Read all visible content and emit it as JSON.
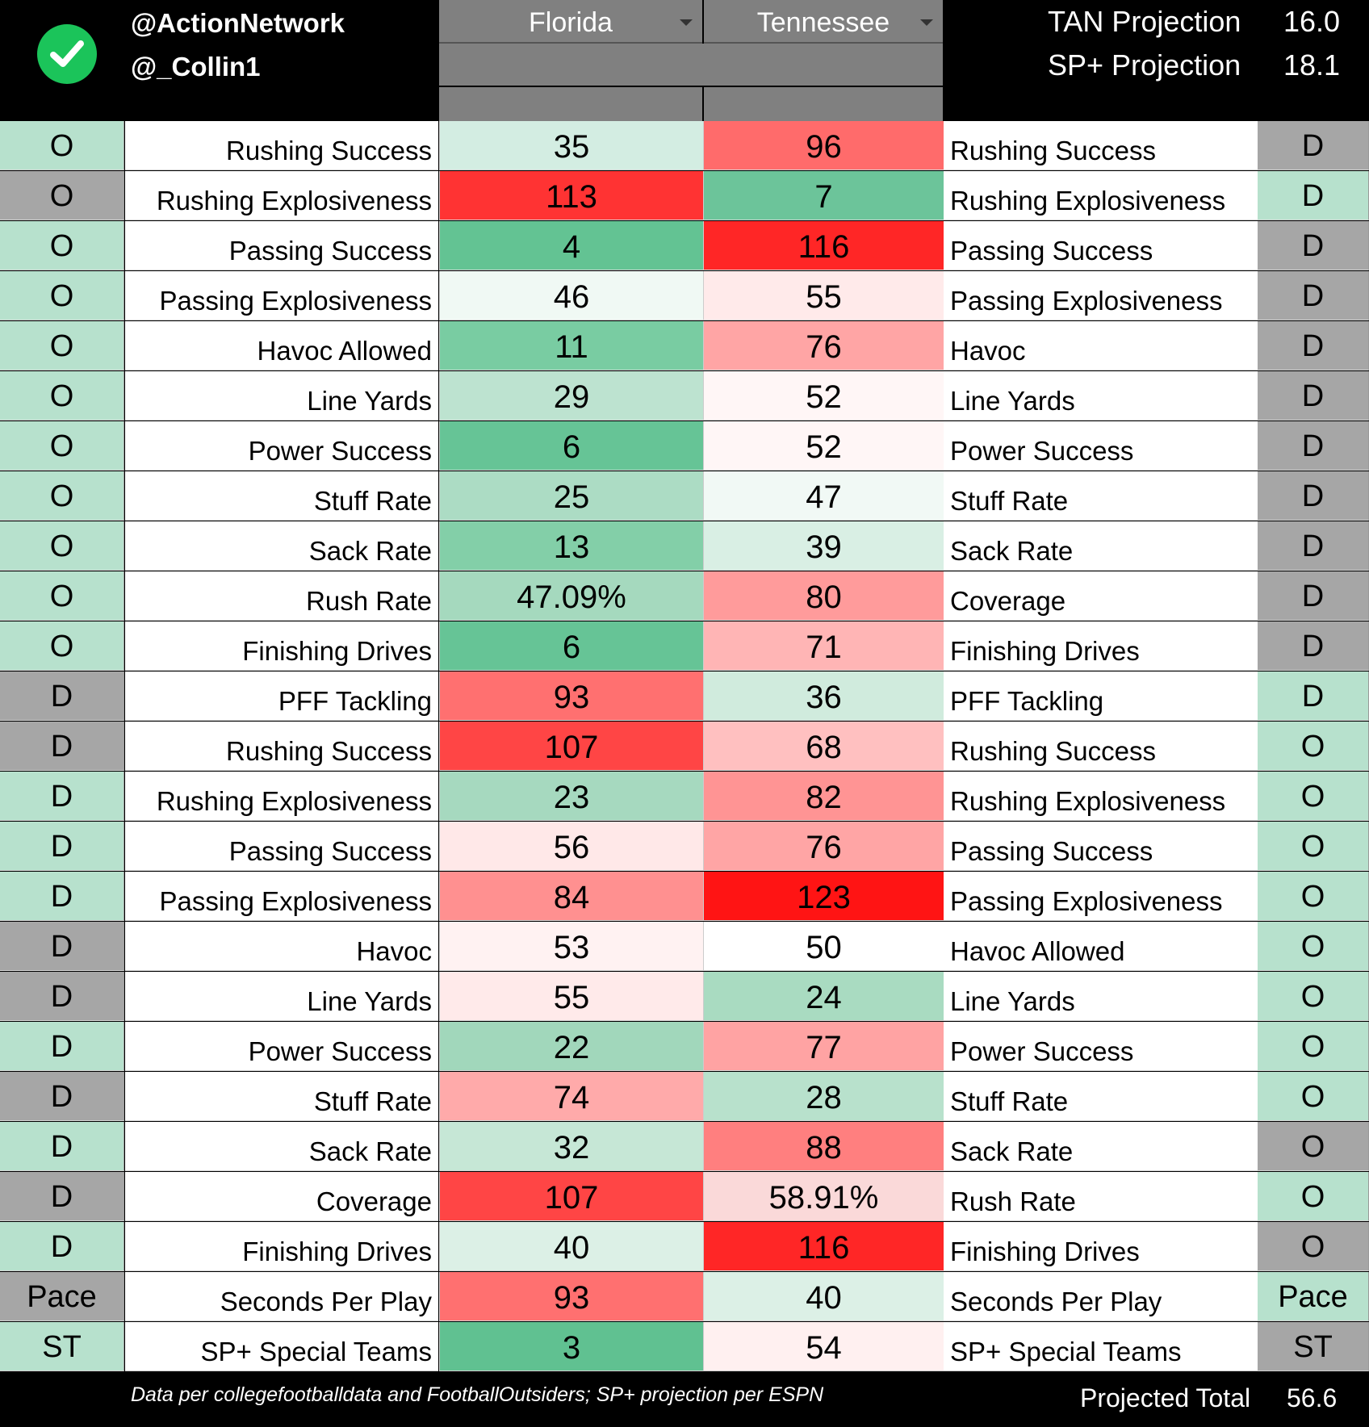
{
  "header": {
    "handles": [
      "@ActionNetwork",
      "@_Collin1"
    ],
    "team_left": "Florida",
    "team_right": "Tennessee",
    "projections": [
      {
        "label": "TAN Projection",
        "value": "16.0"
      },
      {
        "label": "SP+ Projection",
        "value": "18.1"
      }
    ]
  },
  "colors": {
    "side_green": "#b7e1cd",
    "side_gray": "#a6a6a6",
    "check_green": "#1bc45a"
  },
  "rows": [
    {
      "ls": "O",
      "lc": "green",
      "ll": "Rushing Success",
      "fv": "35",
      "fc": "#d3ede2",
      "tv": "96",
      "tc": "#ff6b6b",
      "rl": "Rushing Success",
      "rs": "D",
      "rc": "gray"
    },
    {
      "ls": "O",
      "lc": "gray",
      "ll": "Rushing Explosiveness",
      "fv": "113",
      "fc": "#ff3333",
      "tv": "7",
      "tc": "#6cc49a",
      "rl": "Rushing Explosiveness",
      "rs": "D",
      "rc": "green"
    },
    {
      "ls": "O",
      "lc": "green",
      "ll": "Passing Success",
      "fv": "4",
      "fc": "#63c393",
      "tv": "116",
      "tc": "#ff2626",
      "rl": "Passing Success",
      "rs": "D",
      "rc": "gray"
    },
    {
      "ls": "O",
      "lc": "green",
      "ll": "Passing Explosiveness",
      "fv": "46",
      "fc": "#f0f9f4",
      "tv": "55",
      "tc": "#ffeaea",
      "rl": "Passing Explosiveness",
      "rs": "D",
      "rc": "gray"
    },
    {
      "ls": "O",
      "lc": "green",
      "ll": "Havoc Allowed",
      "fv": "11",
      "fc": "#79cca2",
      "tv": "76",
      "tc": "#ffa5a5",
      "rl": "Havoc",
      "rs": "D",
      "rc": "gray"
    },
    {
      "ls": "O",
      "lc": "green",
      "ll": "Line Yards",
      "fv": "29",
      "fc": "#bde3d0",
      "tv": "52",
      "tc": "#fff6f6",
      "rl": "Line Yards",
      "rs": "D",
      "rc": "gray"
    },
    {
      "ls": "O",
      "lc": "green",
      "ll": "Power Success",
      "fv": "6",
      "fc": "#66c496",
      "tv": "52",
      "tc": "#fff6f6",
      "rl": "Power Success",
      "rs": "D",
      "rc": "gray"
    },
    {
      "ls": "O",
      "lc": "green",
      "ll": "Stuff Rate",
      "fv": "25",
      "fc": "#acdcc4",
      "tv": "47",
      "tc": "#f1f9f5",
      "rl": "Stuff Rate",
      "rs": "D",
      "rc": "gray"
    },
    {
      "ls": "O",
      "lc": "green",
      "ll": "Sack Rate",
      "fv": "13",
      "fc": "#83cfa8",
      "tv": "39",
      "tc": "#d9efe4",
      "rl": "Sack Rate",
      "rs": "D",
      "rc": "gray"
    },
    {
      "ls": "O",
      "lc": "green",
      "ll": "Rush Rate",
      "fv": "47.09%",
      "fc": "#a5d9be",
      "tv": "80",
      "tc": "#ff9b9b",
      "rl": "Coverage",
      "rs": "D",
      "rc": "gray"
    },
    {
      "ls": "O",
      "lc": "green",
      "ll": "Finishing Drives",
      "fv": "6",
      "fc": "#66c496",
      "tv": "71",
      "tc": "#ffb5b5",
      "rl": "Finishing Drives",
      "rs": "D",
      "rc": "gray"
    },
    {
      "ls": "D",
      "lc": "gray",
      "ll": "PFF Tackling",
      "fv": "93",
      "fc": "#ff7070",
      "tv": "36",
      "tc": "#d0ebdd",
      "rl": "PFF Tackling",
      "rs": "D",
      "rc": "green"
    },
    {
      "ls": "D",
      "lc": "gray",
      "ll": "Rushing Success",
      "fv": "107",
      "fc": "#ff4545",
      "tv": "68",
      "tc": "#ffc0c0",
      "rl": "Rushing Success",
      "rs": "O",
      "rc": "green"
    },
    {
      "ls": "D",
      "lc": "green",
      "ll": "Rushing Explosiveness",
      "fv": "23",
      "fc": "#a6d9bf",
      "tv": "82",
      "tc": "#ff9494",
      "rl": "Rushing Explosiveness",
      "rs": "O",
      "rc": "green"
    },
    {
      "ls": "D",
      "lc": "green",
      "ll": "Passing Success",
      "fv": "56",
      "fc": "#ffe8e8",
      "tv": "76",
      "tc": "#ffa5a5",
      "rl": "Passing Success",
      "rs": "O",
      "rc": "green"
    },
    {
      "ls": "D",
      "lc": "green",
      "ll": "Passing Explosiveness",
      "fv": "84",
      "fc": "#ff9090",
      "tv": "123",
      "tc": "#ff1414",
      "rl": "Passing Explosiveness",
      "rs": "O",
      "rc": "green"
    },
    {
      "ls": "D",
      "lc": "gray",
      "ll": "Havoc",
      "fv": "53",
      "fc": "#fff2f2",
      "tv": "50",
      "tc": "#ffffff",
      "rl": "Havoc Allowed",
      "rs": "O",
      "rc": "green"
    },
    {
      "ls": "D",
      "lc": "gray",
      "ll": "Line Yards",
      "fv": "55",
      "fc": "#ffeaea",
      "tv": "24",
      "tc": "#a9dbc1",
      "rl": "Line Yards",
      "rs": "O",
      "rc": "green"
    },
    {
      "ls": "D",
      "lc": "green",
      "ll": "Power Success",
      "fv": "22",
      "fc": "#a1d7bb",
      "tv": "77",
      "tc": "#ffa3a3",
      "rl": "Power Success",
      "rs": "O",
      "rc": "green"
    },
    {
      "ls": "D",
      "lc": "gray",
      "ll": "Stuff Rate",
      "fv": "74",
      "fc": "#ffaaaa",
      "tv": "28",
      "tc": "#b8e1cc",
      "rl": "Stuff Rate",
      "rs": "O",
      "rc": "green"
    },
    {
      "ls": "D",
      "lc": "green",
      "ll": "Sack Rate",
      "fv": "32",
      "fc": "#c6e7d6",
      "tv": "88",
      "tc": "#ff7f7f",
      "rl": "Sack Rate",
      "rs": "O",
      "rc": "gray"
    },
    {
      "ls": "D",
      "lc": "gray",
      "ll": "Coverage",
      "fv": "107",
      "fc": "#ff4545",
      "tv": "58.91%",
      "tc": "#fad9d9",
      "rl": "Rush Rate",
      "rs": "O",
      "rc": "green"
    },
    {
      "ls": "D",
      "lc": "green",
      "ll": "Finishing Drives",
      "fv": "40",
      "fc": "#dcf0e6",
      "tv": "116",
      "tc": "#ff2626",
      "rl": "Finishing Drives",
      "rs": "O",
      "rc": "gray"
    },
    {
      "ls": "Pace",
      "lc": "gray",
      "ll": "Seconds Per Play",
      "fv": "93",
      "fc": "#ff7070",
      "tv": "40",
      "tc": "#dcf0e6",
      "rl": "Seconds Per Play",
      "rs": "Pace",
      "rc": "green"
    },
    {
      "ls": "ST",
      "lc": "green",
      "ll": "SP+ Special Teams",
      "fv": "3",
      "fc": "#60c191",
      "tv": "54",
      "tc": "#fff0f0",
      "rl": "SP+ Special Teams",
      "rs": "ST",
      "rc": "gray"
    }
  ],
  "footer": {
    "note": "Data per collegefootballdata and FootballOutsiders; SP+ projection per ESPN",
    "total_label": "Projected Total",
    "total_value": "56.6"
  }
}
